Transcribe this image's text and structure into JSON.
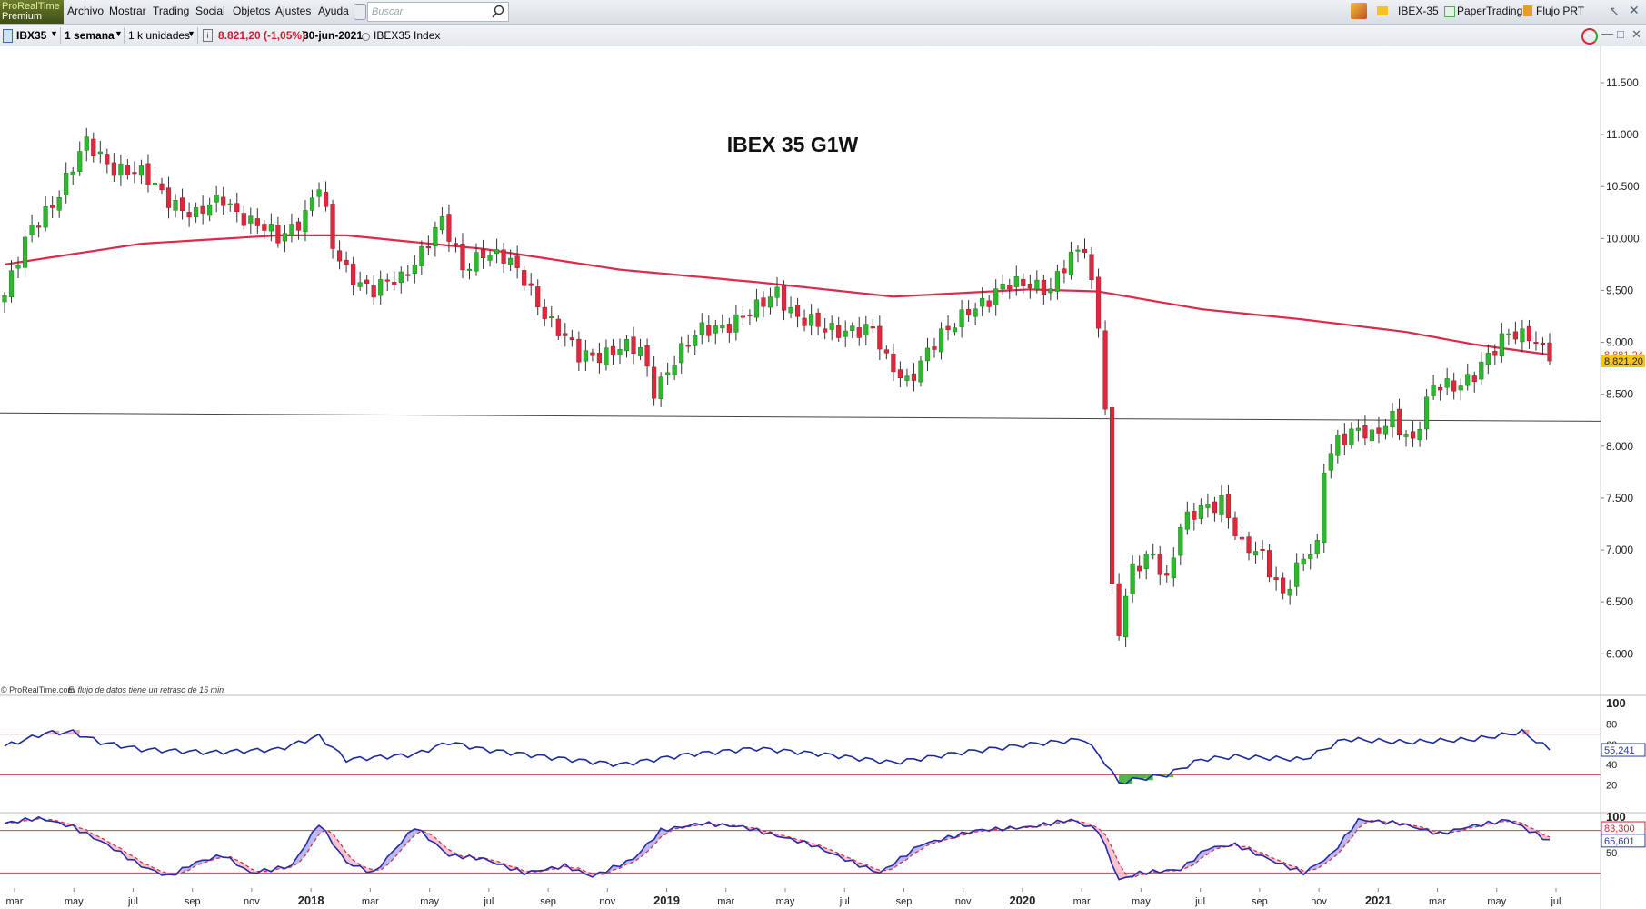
{
  "app": {
    "logo_line1": "ProRealTime",
    "logo_line2": "Premium",
    "menu": [
      "Archivo",
      "Mostrar",
      "Trading",
      "Social",
      "Objetos",
      "Ajustes",
      "Ayuda"
    ],
    "search_placeholder": "Buscar",
    "right_items": [
      "IBEX-35",
      "PaperTrading",
      "Flujo PRT"
    ]
  },
  "toolbar": {
    "symbol": "IBX35",
    "timeframe": "1 semana",
    "units": "1 k unidades",
    "price_change": "8.821,20 (-1,05%)",
    "date": "30-jun-2021",
    "index_name": "IBEX35 Index"
  },
  "colors": {
    "up": "#2db82d",
    "down": "#e0283c",
    "ma": "#e0284a",
    "rsi_line": "#1a2a9c",
    "accent": "#2a62c8"
  },
  "footer_note": {
    "source": "© ProRealTime.com",
    "delay": "El flujo de datos tiene un retraso de 15 min"
  },
  "chart_data": {
    "type": "candlestick",
    "title": "IBEX 35 G1W",
    "price_axis": {
      "ticks": [
        "11.500",
        "11.000",
        "10.500",
        "10.000",
        "9.500",
        "9.000",
        "8.500",
        "8.000",
        "7.500",
        "7.000",
        "6.500",
        "6.000"
      ],
      "tick_values": [
        11500,
        11000,
        10500,
        10000,
        9500,
        9000,
        8500,
        8000,
        7500,
        7000,
        6500,
        6000
      ],
      "range": [
        5600,
        11850
      ]
    },
    "time_axis_labels": [
      "mar",
      "may",
      "jul",
      "sep",
      "nov",
      "2018",
      "mar",
      "may",
      "jul",
      "sep",
      "nov",
      "2019",
      "mar",
      "may",
      "jul",
      "sep",
      "nov",
      "2020",
      "mar",
      "may",
      "jul",
      "sep",
      "nov",
      "2021",
      "mar",
      "may",
      "jul"
    ],
    "time_axis_bold": [
      "2018",
      "2019",
      "2020",
      "2021"
    ],
    "price_anchors": [
      [
        0,
        9450
      ],
      [
        4,
        10100
      ],
      [
        8,
        10450
      ],
      [
        12,
        10900
      ],
      [
        16,
        10700
      ],
      [
        20,
        10600
      ],
      [
        24,
        10400
      ],
      [
        28,
        10200
      ],
      [
        32,
        10400
      ],
      [
        36,
        10150
      ],
      [
        40,
        10000
      ],
      [
        44,
        10250
      ],
      [
        46,
        10500
      ],
      [
        48,
        9900
      ],
      [
        50,
        9700
      ],
      [
        54,
        9500
      ],
      [
        58,
        9600
      ],
      [
        62,
        10000
      ],
      [
        64,
        10150
      ],
      [
        67,
        9700
      ],
      [
        70,
        9900
      ],
      [
        73,
        9800
      ],
      [
        76,
        9600
      ],
      [
        80,
        9200
      ],
      [
        84,
        8850
      ],
      [
        87,
        8900
      ],
      [
        90,
        8950
      ],
      [
        93,
        8900
      ],
      [
        95,
        8550
      ],
      [
        98,
        8850
      ],
      [
        102,
        9100
      ],
      [
        106,
        9200
      ],
      [
        110,
        9300
      ],
      [
        113,
        9500
      ],
      [
        116,
        9250
      ],
      [
        120,
        9100
      ],
      [
        124,
        9150
      ],
      [
        127,
        9100
      ],
      [
        129,
        8800
      ],
      [
        132,
        8650
      ],
      [
        135,
        8900
      ],
      [
        138,
        9100
      ],
      [
        141,
        9350
      ],
      [
        144,
        9400
      ],
      [
        147,
        9550
      ],
      [
        150,
        9600
      ],
      [
        153,
        9500
      ],
      [
        156,
        9800
      ],
      [
        158,
        9950
      ],
      [
        160,
        9200
      ],
      [
        161,
        8400
      ],
      [
        162,
        6600
      ],
      [
        163,
        6200
      ],
      [
        165,
        6800
      ],
      [
        168,
        7000
      ],
      [
        170,
        6700
      ],
      [
        172,
        7200
      ],
      [
        175,
        7400
      ],
      [
        178,
        7500
      ],
      [
        181,
        7000
      ],
      [
        184,
        6950
      ],
      [
        187,
        6600
      ],
      [
        190,
        6900
      ],
      [
        192,
        7000
      ],
      [
        193,
        7800
      ],
      [
        195,
        8100
      ],
      [
        198,
        8150
      ],
      [
        200,
        8050
      ],
      [
        203,
        8300
      ],
      [
        206,
        8050
      ],
      [
        209,
        8550
      ],
      [
        212,
        8600
      ],
      [
        215,
        8700
      ],
      [
        218,
        8900
      ],
      [
        220,
        9100
      ],
      [
        223,
        9100
      ],
      [
        226,
        8821
      ]
    ],
    "last_close": 8821.2,
    "ma_anchors": [
      [
        0,
        9750
      ],
      [
        20,
        9950
      ],
      [
        40,
        10030
      ],
      [
        50,
        10030
      ],
      [
        70,
        9900
      ],
      [
        90,
        9700
      ],
      [
        110,
        9580
      ],
      [
        130,
        9440
      ],
      [
        150,
        9510
      ],
      [
        160,
        9490
      ],
      [
        175,
        9320
      ],
      [
        190,
        9220
      ],
      [
        205,
        9100
      ],
      [
        215,
        8980
      ],
      [
        226,
        8881
      ]
    ],
    "ma_value_label": "8.881,24",
    "last_value_label": "8.821,20",
    "support_line": {
      "start_value": 8320,
      "end_value": 8240
    },
    "rsi": {
      "ticks": [
        "100",
        "80",
        "60",
        "40",
        "20"
      ],
      "tick_values": [
        100,
        80,
        60,
        40,
        20
      ],
      "upper": 70,
      "lower": 30,
      "last_label": "55,241",
      "anchors": [
        [
          0,
          58
        ],
        [
          6,
          71
        ],
        [
          10,
          72
        ],
        [
          14,
          62
        ],
        [
          20,
          55
        ],
        [
          30,
          52
        ],
        [
          40,
          55
        ],
        [
          46,
          68
        ],
        [
          50,
          45
        ],
        [
          60,
          50
        ],
        [
          65,
          62
        ],
        [
          70,
          55
        ],
        [
          80,
          47
        ],
        [
          90,
          40
        ],
        [
          100,
          50
        ],
        [
          110,
          56
        ],
        [
          120,
          50
        ],
        [
          130,
          42
        ],
        [
          140,
          52
        ],
        [
          150,
          60
        ],
        [
          158,
          65
        ],
        [
          161,
          42
        ],
        [
          163,
          22
        ],
        [
          165,
          25
        ],
        [
          170,
          30
        ],
        [
          175,
          45
        ],
        [
          180,
          48
        ],
        [
          190,
          45
        ],
        [
          196,
          65
        ],
        [
          205,
          62
        ],
        [
          215,
          65
        ],
        [
          222,
          72
        ],
        [
          226,
          55
        ]
      ]
    },
    "stochastic": {
      "ticks": [
        "100",
        "50"
      ],
      "tick_values": [
        100,
        50
      ],
      "upper": 80,
      "lower": 20,
      "k_label": "65,601",
      "d_label": "83,300",
      "anchors": [
        [
          0,
          90
        ],
        [
          5,
          98
        ],
        [
          10,
          85
        ],
        [
          15,
          60
        ],
        [
          20,
          30
        ],
        [
          24,
          15
        ],
        [
          28,
          35
        ],
        [
          32,
          45
        ],
        [
          36,
          20
        ],
        [
          42,
          30
        ],
        [
          46,
          90
        ],
        [
          50,
          35
        ],
        [
          54,
          20
        ],
        [
          60,
          85
        ],
        [
          65,
          45
        ],
        [
          70,
          40
        ],
        [
          76,
          20
        ],
        [
          82,
          30
        ],
        [
          86,
          15
        ],
        [
          92,
          40
        ],
        [
          96,
          80
        ],
        [
          102,
          90
        ],
        [
          108,
          85
        ],
        [
          112,
          75
        ],
        [
          118,
          60
        ],
        [
          124,
          35
        ],
        [
          128,
          20
        ],
        [
          134,
          60
        ],
        [
          142,
          80
        ],
        [
          150,
          85
        ],
        [
          156,
          95
        ],
        [
          160,
          80
        ],
        [
          163,
          10
        ],
        [
          166,
          20
        ],
        [
          172,
          25
        ],
        [
          176,
          55
        ],
        [
          180,
          60
        ],
        [
          186,
          35
        ],
        [
          190,
          20
        ],
        [
          194,
          45
        ],
        [
          198,
          95
        ],
        [
          204,
          90
        ],
        [
          210,
          75
        ],
        [
          214,
          85
        ],
        [
          220,
          95
        ],
        [
          226,
          65
        ]
      ]
    }
  }
}
